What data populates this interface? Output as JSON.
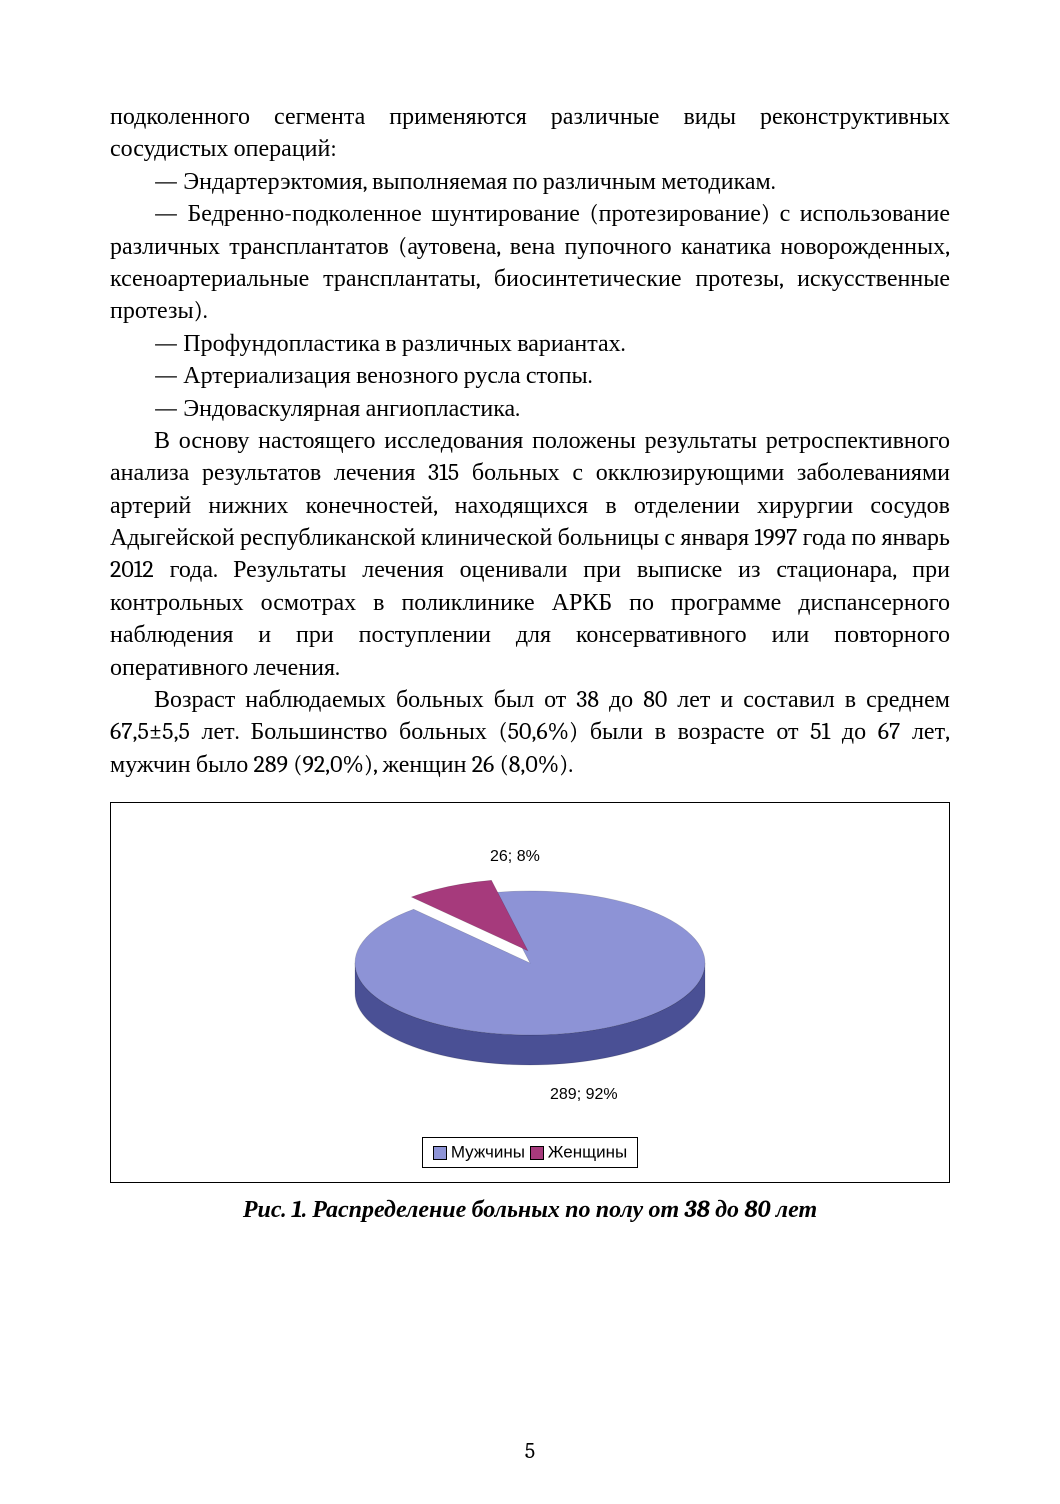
{
  "text": {
    "p1": "подколенного сегмента применяются различные виды реконструктивных сосудистых операций:",
    "b1": "—   Эндартерэктомия, выполняемая по различным методикам.",
    "b2": "—   Бедренно-подколенное   шунтирование   (протезирование)  с  использование  различных  трансплантатов  (аутовена, вена пупочного канатика новорожденных, ксеноартериальные трансплантаты,   биосинтетические   протезы,   искусственные протезы).",
    "b3": "—   Профундопластика в различных вариантах.",
    "b4": "—   Артериализация венозного русла стопы.",
    "b5": "—   Эндоваскулярная ангиопластика.",
    "p2": "В  основу  настоящего  исследования  положены  результаты ретроспективного анализа результатов лечения 315 больных с окклюзирующими  заболеваниями  артерий  нижних  конечностей, находящихся в отделении хирургии сосудов Адыгейской республиканской  клинической  больницы  с  января  1997  года по  январь  2012  года.  Результаты  лечения  оценивали  при  выписке из стационара, при контрольных осмотрах в поликлинике  АРКБ  по  программе  диспансерного  наблюдения  и  при  поступлении для консервативного или повторного оперативного лечения.",
    "p3": "Возраст наблюдаемых больных был от 38 до 80 лет и составил в среднем 67,5±5,5 лет. Большинство больных (50,6%) были в возрасте от 51 до 67 лет, мужчин было 289 (92,0%), женщин 26 (8,0%)."
  },
  "chart": {
    "type": "pie",
    "slices": [
      {
        "label": "Мужчины",
        "value": 289,
        "percent": 92,
        "data_label": "289; 92%",
        "color": "#8d93d6"
      },
      {
        "label": "Женщины",
        "value": 26,
        "percent": 8,
        "data_label": "26; 8%",
        "color": "#a63a7c"
      }
    ],
    "background_color": "#ffffff",
    "label_font_family": "Arial",
    "label_font_size": 16,
    "label_color": "#000000",
    "ellipse_rx": 175,
    "ellipse_ry": 72,
    "depth": 30,
    "edge_shade_color": "#5d63a6",
    "side_dark_color": "#4a5095",
    "slice2_side_color": "#6c2654",
    "legend": {
      "border_color": "#000000",
      "swatch_border": "#000000"
    }
  },
  "caption": "Рис. 1. Распределение больных по полу от 38 до 80 лет",
  "page_number": "5"
}
